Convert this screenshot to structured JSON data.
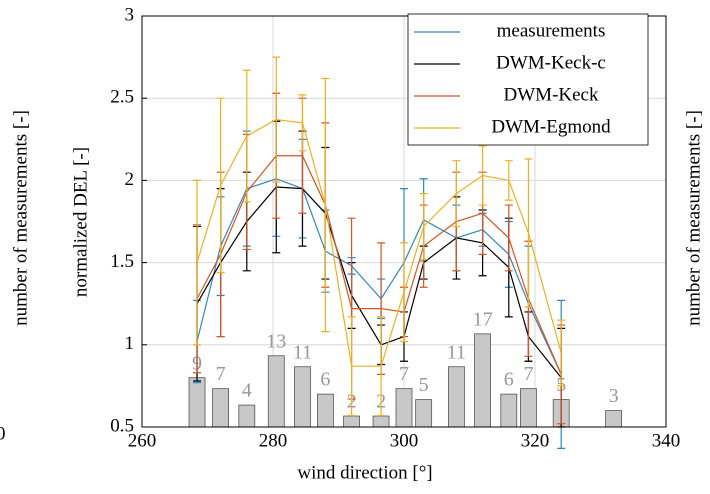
{
  "chart_data": {
    "type": "line",
    "xlabel": "wind direction [°]",
    "ylabel": "normalized DEL [-]",
    "y2label_left": "number of measurements [-]",
    "y2label_right": "number of measurements [-]",
    "x": [
      268.4,
      272,
      276,
      280.5,
      284.5,
      288,
      292,
      296.5,
      300,
      303,
      308,
      312,
      316,
      319,
      324,
      332
    ],
    "counts": [
      9,
      7,
      4,
      13,
      11,
      6,
      2,
      2,
      7,
      5,
      11,
      17,
      6,
      7,
      5,
      3
    ],
    "count_labels": [
      "9",
      "7",
      "4",
      "13",
      "11",
      "6",
      "2",
      "2",
      "7",
      "5",
      "11",
      "17",
      "6",
      "7",
      "5",
      "3"
    ],
    "bar_color": "#c8c8c8",
    "series": [
      {
        "name": "measurements",
        "color": "#2f88c0",
        "values": [
          1.02,
          1.6,
          1.95,
          2.01,
          1.95,
          1.57,
          1.48,
          1.28,
          1.5,
          1.76,
          1.65,
          1.7,
          1.55,
          1.25,
          0.82,
          null
        ],
        "errors": [
          0.25,
          0.3,
          0.35,
          0.35,
          0.3,
          0.25,
          0.05,
          0.12,
          0.45,
          0.25,
          0.2,
          0.1,
          0.2,
          0.35,
          0.45,
          null
        ]
      },
      {
        "name": "DWM-Keck-c",
        "color": "#000000",
        "values": [
          1.25,
          1.5,
          1.75,
          1.96,
          1.95,
          1.8,
          1.3,
          1.0,
          1.05,
          1.5,
          1.65,
          1.62,
          1.47,
          1.05,
          0.8,
          null
        ],
        "errors": [
          0.47,
          0.45,
          0.3,
          0.4,
          0.35,
          0.4,
          0.2,
          0.12,
          0.15,
          0.1,
          0.25,
          0.2,
          0.3,
          0.15,
          0.3,
          null
        ]
      },
      {
        "name": "DWM-Keck",
        "color": "#d9541e",
        "values": [
          1.28,
          1.55,
          1.93,
          2.15,
          2.15,
          1.85,
          1.22,
          1.22,
          1.2,
          1.6,
          1.75,
          1.8,
          1.65,
          1.28,
          0.82,
          null
        ],
        "errors": [
          0.45,
          0.5,
          0.35,
          0.38,
          0.35,
          0.5,
          0.55,
          0.4,
          0.15,
          0.25,
          0.3,
          0.25,
          0.2,
          0.35,
          0.3,
          null
        ]
      },
      {
        "name": "DWM-Egmond",
        "color": "#edb120",
        "values": [
          1.5,
          1.97,
          2.27,
          2.37,
          2.35,
          1.85,
          0.87,
          0.87,
          1.32,
          1.72,
          1.92,
          2.03,
          2.0,
          1.68,
          0.95,
          null
        ],
        "errors": [
          0.5,
          0.53,
          0.4,
          0.38,
          0.17,
          0.77,
          0.3,
          0.3,
          0.3,
          0.2,
          0.2,
          0.18,
          0.12,
          0.45,
          0.2,
          null
        ]
      }
    ],
    "xlim": [
      260,
      340
    ],
    "xticks": [
      260,
      280,
      300,
      320,
      340
    ],
    "ylim": [
      0.5,
      3
    ],
    "yticks": [
      0.5,
      1,
      1.5,
      2,
      2.5,
      3
    ],
    "y2lim": [
      0,
      75
    ],
    "y2ticks": [
      0
    ],
    "grid": true,
    "legend": "upper right"
  }
}
